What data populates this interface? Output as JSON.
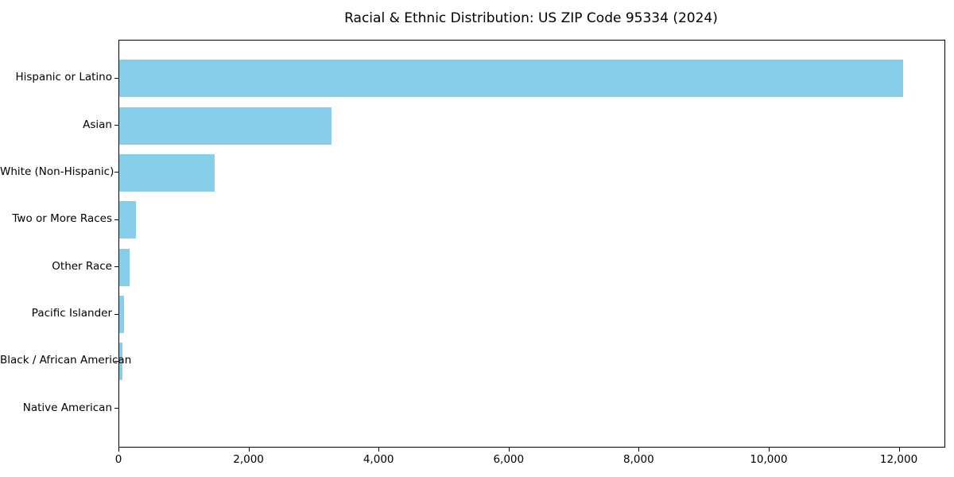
{
  "title": "Racial & Ethnic Distribution: US ZIP Code 95334 (2024)",
  "chart_data": {
    "type": "bar",
    "orientation": "horizontal",
    "title": "Racial & Ethnic Distribution: US ZIP Code 95334 (2024)",
    "xlabel": "",
    "ylabel": "",
    "categories": [
      "Hispanic or Latino",
      "Asian",
      "White (Non-Hispanic)",
      "Two or More Races",
      "Other Race",
      "Pacific Islander",
      "Black / African American",
      "Native American"
    ],
    "values": [
      12050,
      3260,
      1470,
      260,
      160,
      70,
      45,
      0
    ],
    "xlim": [
      0,
      12690
    ],
    "x_ticks": [
      0,
      2000,
      4000,
      6000,
      8000,
      10000,
      12000
    ],
    "x_tick_labels": [
      "0",
      "2,000",
      "4,000",
      "6,000",
      "8,000",
      "10,000",
      "12,000"
    ],
    "bar_color": "#87CEEB",
    "text_color": "#000000",
    "background_color": "#FFFFFF",
    "grid": false,
    "legend": null
  }
}
